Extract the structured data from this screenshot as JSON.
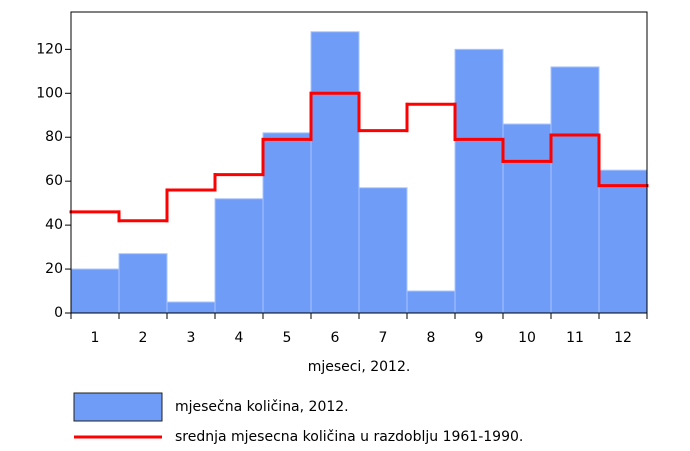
{
  "chart_data": {
    "type": "bar",
    "x_label": "mjeseci, 2012.",
    "categories": [
      "1",
      "2",
      "3",
      "4",
      "5",
      "6",
      "7",
      "8",
      "9",
      "10",
      "11",
      "12"
    ],
    "series": [
      {
        "name": "mjesečna količina, 2012.",
        "type": "bar",
        "color": "#6e9cf7",
        "values": [
          20,
          27,
          5,
          52,
          82,
          128,
          57,
          10,
          120,
          86,
          112,
          65
        ]
      },
      {
        "name": "srednja mjesecna količina u razdoblju 1961-1990.",
        "type": "step",
        "color": "#ff0000",
        "values": [
          46,
          42,
          56,
          63,
          79,
          100,
          83,
          95,
          79,
          69,
          81,
          58
        ]
      }
    ],
    "ylim": [
      0,
      137
    ],
    "yticks": [
      0,
      20,
      40,
      60,
      80,
      100,
      120
    ]
  }
}
